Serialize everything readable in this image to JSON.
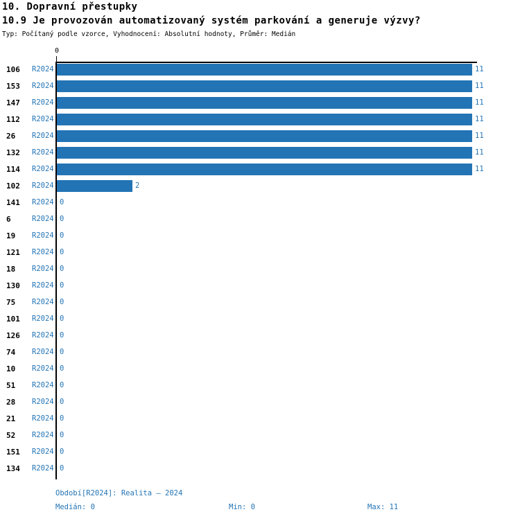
{
  "header": {
    "title": "10. Dopravní přestupky",
    "subtitle": "10.9 Je provozován automatizovaný systém parkování a generuje výzvy?",
    "meta": "Typ: Počítaný podle vzorce, Vyhodnocení: Absolutní hodnoty, Průměr: Medián"
  },
  "chart_data": {
    "type": "bar",
    "orientation": "horizontal",
    "categories": [
      "106",
      "153",
      "147",
      "112",
      "26",
      "132",
      "114",
      "102",
      "141",
      "6",
      "19",
      "121",
      "18",
      "130",
      "75",
      "101",
      "126",
      "74",
      "10",
      "51",
      "28",
      "21",
      "52",
      "151",
      "134"
    ],
    "series": [
      {
        "name": "R2024",
        "values": [
          11,
          11,
          11,
          11,
          11,
          11,
          11,
          2,
          0,
          0,
          0,
          0,
          0,
          0,
          0,
          0,
          0,
          0,
          0,
          0,
          0,
          0,
          0,
          0,
          0
        ]
      }
    ],
    "xlim": [
      0,
      11
    ],
    "x_tick_label": "0",
    "value_labels_shown": true,
    "grid": false,
    "legend_position": "none"
  },
  "footer": {
    "period": "Období[R2024]: Realita – 2024",
    "median": "Medián: 0",
    "min": "Min: 0",
    "max": "Max: 11"
  },
  "colors": {
    "bar": "#2374b5",
    "accent_text": "#2374b5",
    "text": "#000000",
    "background": "#ffffff"
  }
}
